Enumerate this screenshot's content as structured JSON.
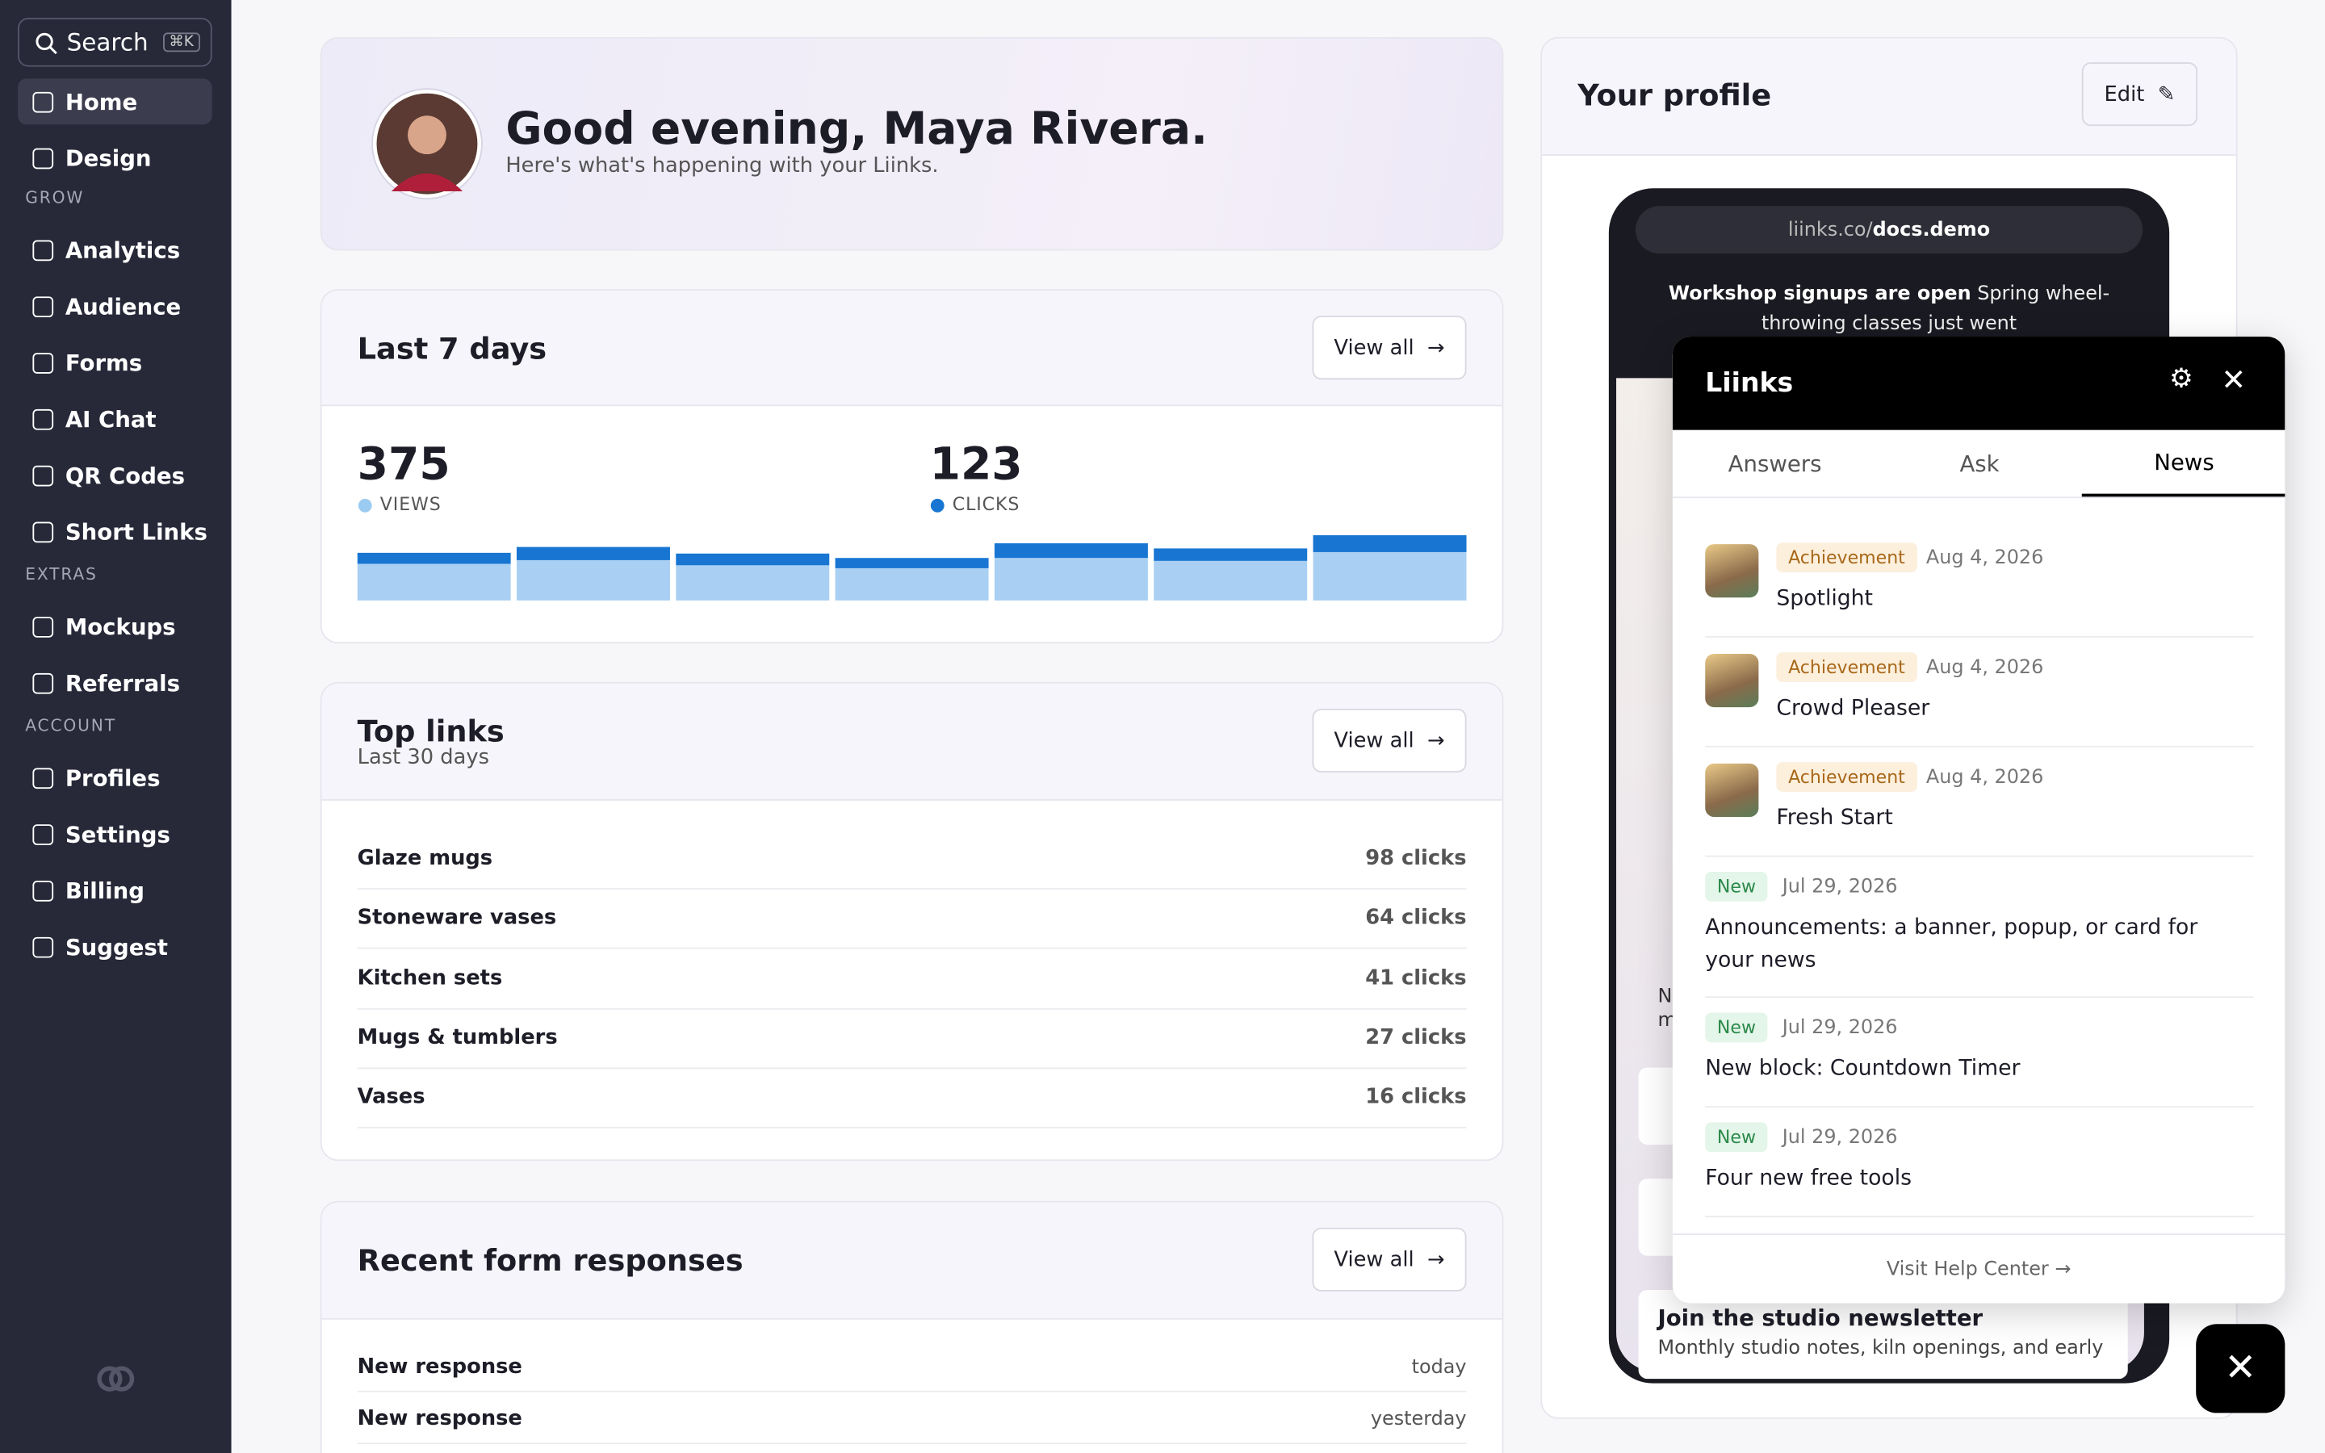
{
  "sidebar": {
    "search": "Search",
    "shortcut": "⌘K",
    "top": [
      "Home",
      "Design"
    ],
    "groups": [
      {
        "title": "GROW",
        "items": [
          "Analytics",
          "Audience",
          "Forms",
          "AI Chat",
          "QR Codes",
          "Short Links"
        ]
      },
      {
        "title": "EXTRAS",
        "items": [
          "Mockups",
          "Referrals"
        ]
      },
      {
        "title": "ACCOUNT",
        "items": [
          "Profiles",
          "Settings",
          "Billing",
          "Suggest"
        ]
      }
    ]
  },
  "greeting": {
    "title": "Good evening, Maya Rivera.",
    "subtitle": "Here's what's happening with your Liinks."
  },
  "last7": {
    "title": "Last 7 days",
    "button": "View all",
    "views": 375,
    "views_label": "VIEWS",
    "clicks": 123,
    "clicks_label": "CLICKS",
    "daily_views": [
      50,
      55,
      48,
      44,
      58,
      54,
      66
    ],
    "daily_clicks": [
      15,
      18,
      16,
      14,
      20,
      17,
      23
    ]
  },
  "top_links": {
    "title": "Top links",
    "subtitle": "Last 30 days",
    "button": "View all",
    "rows": [
      {
        "name": "Glaze mugs",
        "clicks": "98 clicks"
      },
      {
        "name": "Stoneware vases",
        "clicks": "64 clicks"
      },
      {
        "name": "Kitchen sets",
        "clicks": "41 clicks"
      },
      {
        "name": "Mugs & tumblers",
        "clicks": "27 clicks"
      },
      {
        "name": "Vases",
        "clicks": "16 clicks"
      }
    ]
  },
  "forms": {
    "title": "Recent form responses",
    "button": "View all",
    "rows": [
      {
        "name": "New response",
        "when": "today"
      },
      {
        "name": "New response",
        "when": "yesterday"
      }
    ]
  },
  "profile": {
    "title": "Your profile",
    "edit": "Edit",
    "url_prefix": "liinks.co/",
    "url_handle": "docs.demo",
    "banner_title": "Workshop signups are open",
    "banner_text": "Spring wheel-throwing classes just went",
    "fragments": [
      "N",
      "m"
    ],
    "newsletter_title": "Join the studio newsletter",
    "newsletter_text": "Monthly studio notes, kiln openings, and early"
  },
  "widget": {
    "title": "Liinks",
    "tabs": [
      "Answers",
      "Ask",
      "News"
    ],
    "active_tab": 2,
    "items": [
      {
        "tag": "Achievement",
        "date": "Aug 4, 2026",
        "title": "Spotlight"
      },
      {
        "tag": "Achievement",
        "date": "Aug 4, 2026",
        "title": "Crowd Pleaser"
      },
      {
        "tag": "Achievement",
        "date": "Aug 4, 2026",
        "title": "Fresh Start"
      },
      {
        "tag": "New",
        "date": "Jul 29, 2026",
        "title": "Announcements: a banner, popup, or card for your news"
      },
      {
        "tag": "New",
        "date": "Jul 29, 2026",
        "title": "New block: Countdown Timer"
      },
      {
        "tag": "New",
        "date": "Jul 29, 2026",
        "title": "Four new free tools"
      }
    ],
    "footer": "Visit Help Center →"
  }
}
